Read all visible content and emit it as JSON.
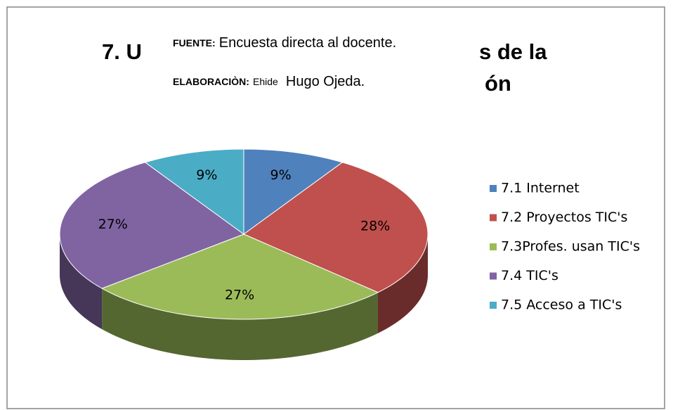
{
  "chart_data": {
    "type": "pie3d",
    "title_fragments": [
      "7. U",
      "s de la",
      "ón"
    ],
    "source_label": "FUENTE:",
    "source_text": "Encuesta directa al docente.",
    "author_label": "ELABORACIÒN:",
    "author_first": "Ehide",
    "author_rest": "Hugo Ojeda.",
    "categories": [
      "7.1 Internet",
      "7.2 Proyectos TIC's",
      "7.3Profes. usan TIC's",
      "7.4 TIC's",
      "7.5 Acceso a TIC's"
    ],
    "values": [
      9,
      28,
      27,
      27,
      9
    ],
    "value_labels": [
      "9%",
      "28%",
      "27%",
      "27%",
      "9%"
    ],
    "colors": [
      "#4f81bd",
      "#c0504d",
      "#9bbb59",
      "#8064a2",
      "#4bacc6"
    ],
    "legend": "right"
  }
}
